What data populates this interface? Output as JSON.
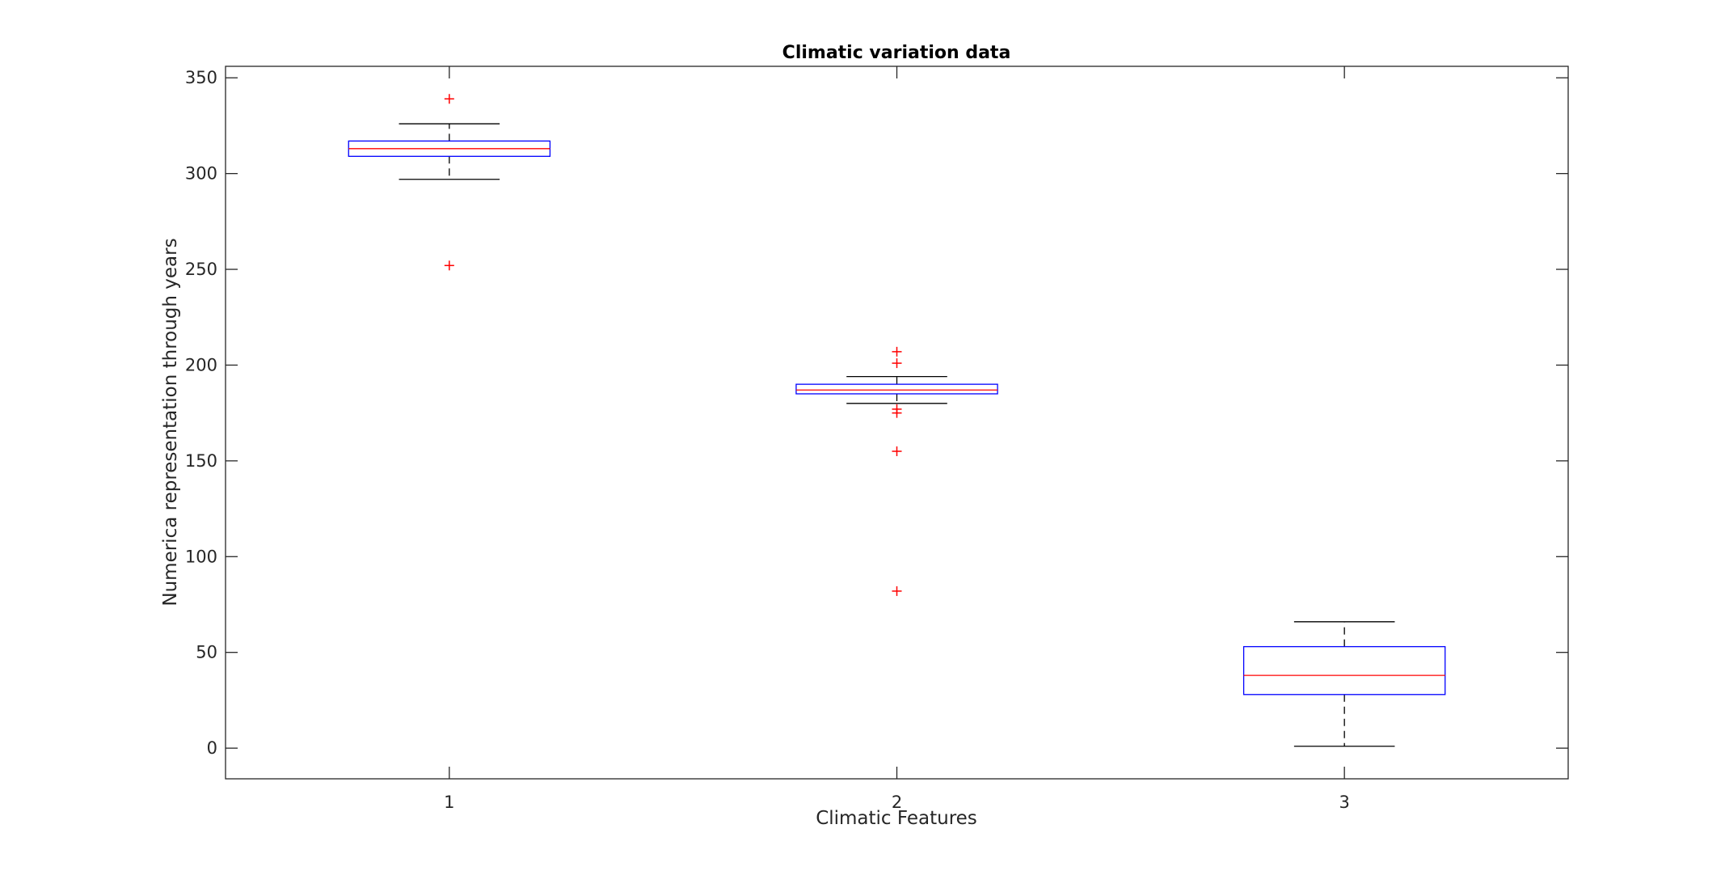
{
  "chart_data": {
    "type": "box",
    "title": "Climatic variation data",
    "xlabel": "Climatic Features",
    "ylabel": "Numerica representation through years",
    "categories": [
      "1",
      "2",
      "3"
    ],
    "ylim": [
      -16,
      356
    ],
    "yticks": [
      "0",
      "50",
      "100",
      "150",
      "200",
      "250",
      "300",
      "350"
    ],
    "grid": false,
    "boxes": [
      {
        "category": "1",
        "whisker_low": 297,
        "q1": 309,
        "median": 313,
        "q3": 317,
        "whisker_high": 326,
        "outliers": [
          339,
          252
        ]
      },
      {
        "category": "2",
        "whisker_low": 180,
        "q1": 185,
        "median": 187,
        "q3": 190,
        "whisker_high": 194,
        "outliers": [
          207,
          201,
          177,
          175,
          155,
          82
        ]
      },
      {
        "category": "3",
        "whisker_low": 1,
        "q1": 28,
        "median": 38,
        "q3": 53,
        "whisker_high": 66,
        "outliers": []
      }
    ],
    "colors": {
      "box": "#0000ff",
      "median": "#ff0000",
      "whisker": "#000000",
      "outlier": "#ff0000",
      "axis": "#262626"
    }
  }
}
